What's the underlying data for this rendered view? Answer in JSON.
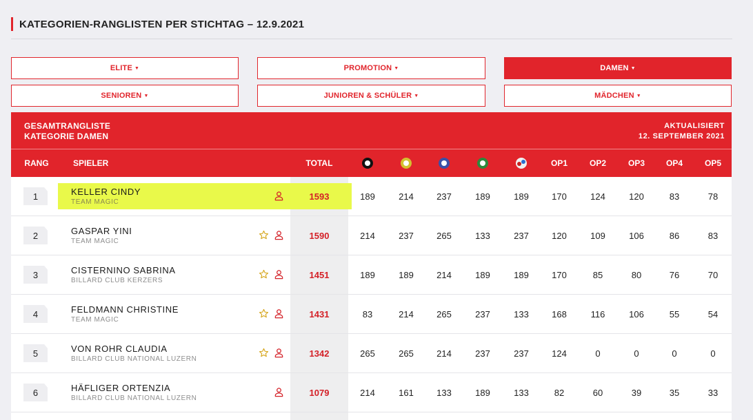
{
  "page": {
    "title": "KATEGORIEN-RANGLISTEN PER STICHTAG – 12.9.2021"
  },
  "filters": [
    {
      "label": "ELITE",
      "active": false
    },
    {
      "label": "PROMOTION",
      "active": false
    },
    {
      "label": "DAMEN",
      "active": true
    },
    {
      "label": "SENIOREN",
      "active": false
    },
    {
      "label": "JUNIOREN & SCHÜLER",
      "active": false
    },
    {
      "label": "MÄDCHEN",
      "active": false
    }
  ],
  "table": {
    "title_line1": "GESAMTRANGLISTE",
    "title_line2": "KATEGORIE DAMEN",
    "updated_label": "AKTUALISIERT",
    "updated_date": "12. SEPTEMBER 2021",
    "columns": {
      "rank": "RANG",
      "player": "SPIELER",
      "total": "TOTAL",
      "disciplines": [
        "8-ball-icon",
        "9-ball-icon",
        "10-ball-icon",
        "14-1-ball-icon",
        "snooker-icon"
      ],
      "op": [
        "OP1",
        "OP2",
        "OP3",
        "OP4",
        "OP5"
      ]
    },
    "rows": [
      {
        "rank": "1",
        "name": "KELLER CINDY",
        "club": "TEAM MAGIC",
        "star": false,
        "total": "1593",
        "scores": [
          "189",
          "214",
          "237",
          "189",
          "189",
          "170",
          "124",
          "120",
          "83",
          "78"
        ]
      },
      {
        "rank": "2",
        "name": "GASPAR YINI",
        "club": "TEAM MAGIC",
        "star": true,
        "total": "1590",
        "scores": [
          "214",
          "237",
          "265",
          "133",
          "237",
          "120",
          "109",
          "106",
          "86",
          "83"
        ]
      },
      {
        "rank": "3",
        "name": "CISTERNINO SABRINA",
        "club": "BILLARD CLUB KERZERS",
        "star": true,
        "total": "1451",
        "scores": [
          "189",
          "189",
          "214",
          "189",
          "189",
          "170",
          "85",
          "80",
          "76",
          "70"
        ]
      },
      {
        "rank": "4",
        "name": "FELDMANN CHRISTINE",
        "club": "TEAM MAGIC",
        "star": true,
        "total": "1431",
        "scores": [
          "83",
          "214",
          "265",
          "237",
          "133",
          "168",
          "116",
          "106",
          "55",
          "54"
        ]
      },
      {
        "rank": "5",
        "name": "VON ROHR CLAUDIA",
        "club": "BILLARD CLUB NATIONAL LUZERN",
        "star": true,
        "total": "1342",
        "scores": [
          "265",
          "265",
          "214",
          "237",
          "237",
          "124",
          "0",
          "0",
          "0",
          "0"
        ]
      },
      {
        "rank": "6",
        "name": "HÄFLIGER ORTENZIA",
        "club": "BILLARD CLUB NATIONAL LUZERN",
        "star": false,
        "total": "1079",
        "scores": [
          "214",
          "161",
          "133",
          "189",
          "133",
          "82",
          "60",
          "39",
          "35",
          "33"
        ]
      }
    ]
  },
  "colors": {
    "accent": "#e1242b",
    "highlight": "#e9f94a"
  }
}
